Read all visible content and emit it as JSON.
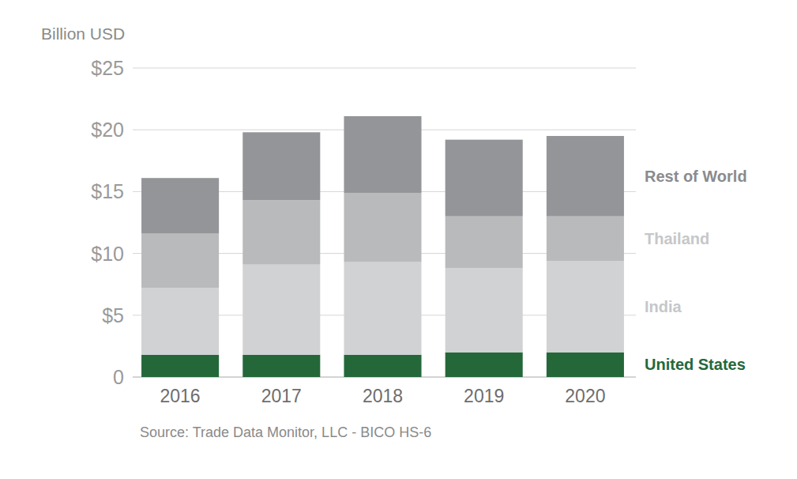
{
  "chart_data": {
    "type": "bar",
    "stacked": true,
    "grid": true,
    "ylabel": "Billion USD",
    "source": "Source: Trade Data Monitor, LLC - BICO HS-6",
    "categories": [
      "2016",
      "2017",
      "2018",
      "2019",
      "2020"
    ],
    "ylim": [
      0,
      25
    ],
    "yticks": [
      0,
      {
        "value": 5,
        "label": "$5"
      },
      {
        "value": 10,
        "label": "$10"
      },
      {
        "value": 15,
        "label": "$15"
      },
      {
        "value": 20,
        "label": "$20"
      },
      {
        "value": 25,
        "label": "$25"
      }
    ],
    "series": [
      {
        "name": "United States",
        "color": "#24683a",
        "values": [
          1.8,
          1.8,
          1.8,
          2.0,
          2.0
        ]
      },
      {
        "name": "India",
        "color": "#d1d2d4",
        "values": [
          5.4,
          7.3,
          7.5,
          6.8,
          7.4
        ]
      },
      {
        "name": "Thailand",
        "color": "#b9babc",
        "values": [
          4.4,
          5.2,
          5.6,
          4.2,
          3.6
        ]
      },
      {
        "name": "Rest of World",
        "color": "#949598",
        "values": [
          4.5,
          5.5,
          6.2,
          6.2,
          6.5
        ]
      }
    ]
  }
}
